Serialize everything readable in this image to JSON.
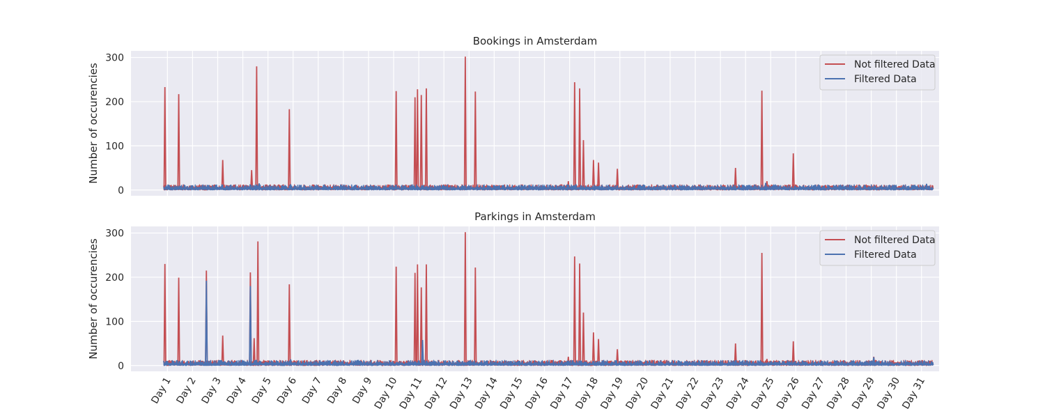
{
  "figure": {
    "background": "#ffffff",
    "axes_facecolor": "#eaeaf2",
    "grid_color": "#ffffff",
    "colors": {
      "not_filtered": "#c44e52",
      "filtered": "#4c72b0"
    }
  },
  "chart_data": [
    {
      "type": "line",
      "title": "Bookings in Amsterdam",
      "xlabel": "",
      "ylabel": "Number of occurencies",
      "ylim": [
        -13,
        315
      ],
      "yticks": [
        0,
        100,
        200,
        300
      ],
      "xlim": [
        -0.45,
        31.7
      ],
      "grid": true,
      "legend": "top-right",
      "categories": [
        "Day 1",
        "Day 2",
        "Day 3",
        "Day 4",
        "Day 5",
        "Day 6",
        "Day 7",
        "Day 8",
        "Day 9",
        "Day 10",
        "Day 11",
        "Day 12",
        "Day 13",
        "Day 14",
        "Day 15",
        "Day 16",
        "Day 17",
        "Day 18",
        "Day 19",
        "Day 20",
        "Day 21",
        "Day 22",
        "Day 23",
        "Day 24",
        "Day 25",
        "Day 26",
        "Day 27",
        "Day 28",
        "Day 29",
        "Day 30",
        "Day 31"
      ],
      "x_range": [
        0.85,
        31.45
      ],
      "baseline": [
        5,
        12
      ],
      "series": [
        {
          "name": "Not filtered Data",
          "color": "#c44e52",
          "spikes": [
            {
              "x": 0.9,
              "y": 233
            },
            {
              "x": 1.45,
              "y": 217
            },
            {
              "x": 3.2,
              "y": 68
            },
            {
              "x": 4.35,
              "y": 45
            },
            {
              "x": 4.55,
              "y": 280
            },
            {
              "x": 5.85,
              "y": 183
            },
            {
              "x": 10.1,
              "y": 224
            },
            {
              "x": 10.85,
              "y": 210
            },
            {
              "x": 10.95,
              "y": 228
            },
            {
              "x": 11.1,
              "y": 215
            },
            {
              "x": 11.3,
              "y": 230
            },
            {
              "x": 12.85,
              "y": 302
            },
            {
              "x": 13.25,
              "y": 223
            },
            {
              "x": 16.95,
              "y": 20
            },
            {
              "x": 17.2,
              "y": 244
            },
            {
              "x": 17.4,
              "y": 230
            },
            {
              "x": 17.55,
              "y": 113
            },
            {
              "x": 17.95,
              "y": 68
            },
            {
              "x": 18.15,
              "y": 62
            },
            {
              "x": 18.9,
              "y": 48
            },
            {
              "x": 23.6,
              "y": 50
            },
            {
              "x": 24.65,
              "y": 225
            },
            {
              "x": 24.85,
              "y": 20
            },
            {
              "x": 25.9,
              "y": 83
            }
          ]
        },
        {
          "name": "Filtered Data",
          "color": "#4c72b0",
          "spikes": [
            {
              "x": 4.65,
              "y": 15
            },
            {
              "x": 5.9,
              "y": 13
            },
            {
              "x": 17.25,
              "y": 13
            },
            {
              "x": 24.8,
              "y": 16
            },
            {
              "x": 31.2,
              "y": 14
            }
          ]
        }
      ]
    },
    {
      "type": "line",
      "title": "Parkings in Amsterdam",
      "xlabel": "",
      "ylabel": "Number of occurencies",
      "ylim": [
        -13,
        315
      ],
      "yticks": [
        0,
        100,
        200,
        300
      ],
      "xlim": [
        -0.45,
        31.7
      ],
      "grid": true,
      "legend": "top-right",
      "categories": [
        "Day 1",
        "Day 2",
        "Day 3",
        "Day 4",
        "Day 5",
        "Day 6",
        "Day 7",
        "Day 8",
        "Day 9",
        "Day 10",
        "Day 11",
        "Day 12",
        "Day 13",
        "Day 14",
        "Day 15",
        "Day 16",
        "Day 17",
        "Day 18",
        "Day 19",
        "Day 20",
        "Day 21",
        "Day 22",
        "Day 23",
        "Day 24",
        "Day 25",
        "Day 26",
        "Day 27",
        "Day 28",
        "Day 29",
        "Day 30",
        "Day 31"
      ],
      "x_range": [
        0.85,
        31.45
      ],
      "baseline": [
        5,
        12
      ],
      "series": [
        {
          "name": "Not filtered Data",
          "color": "#c44e52",
          "spikes": [
            {
              "x": 0.9,
              "y": 230
            },
            {
              "x": 1.45,
              "y": 199
            },
            {
              "x": 2.55,
              "y": 215
            },
            {
              "x": 3.2,
              "y": 68
            },
            {
              "x": 4.3,
              "y": 211
            },
            {
              "x": 4.45,
              "y": 62
            },
            {
              "x": 4.6,
              "y": 281
            },
            {
              "x": 5.85,
              "y": 184
            },
            {
              "x": 10.1,
              "y": 224
            },
            {
              "x": 10.85,
              "y": 210
            },
            {
              "x": 10.95,
              "y": 229
            },
            {
              "x": 11.1,
              "y": 177
            },
            {
              "x": 11.3,
              "y": 229
            },
            {
              "x": 12.85,
              "y": 302
            },
            {
              "x": 13.25,
              "y": 222
            },
            {
              "x": 16.95,
              "y": 20
            },
            {
              "x": 17.2,
              "y": 247
            },
            {
              "x": 17.4,
              "y": 231
            },
            {
              "x": 17.55,
              "y": 120
            },
            {
              "x": 17.95,
              "y": 75
            },
            {
              "x": 18.15,
              "y": 60
            },
            {
              "x": 18.9,
              "y": 37
            },
            {
              "x": 23.6,
              "y": 50
            },
            {
              "x": 24.65,
              "y": 255
            },
            {
              "x": 24.85,
              "y": 15
            },
            {
              "x": 25.9,
              "y": 55
            },
            {
              "x": 29.1,
              "y": 20
            }
          ]
        },
        {
          "name": "Filtered Data",
          "color": "#4c72b0",
          "spikes": [
            {
              "x": 2.55,
              "y": 192
            },
            {
              "x": 4.3,
              "y": 180
            },
            {
              "x": 11.15,
              "y": 58
            },
            {
              "x": 5.9,
              "y": 14
            },
            {
              "x": 29.1,
              "y": 19
            }
          ]
        }
      ]
    }
  ]
}
